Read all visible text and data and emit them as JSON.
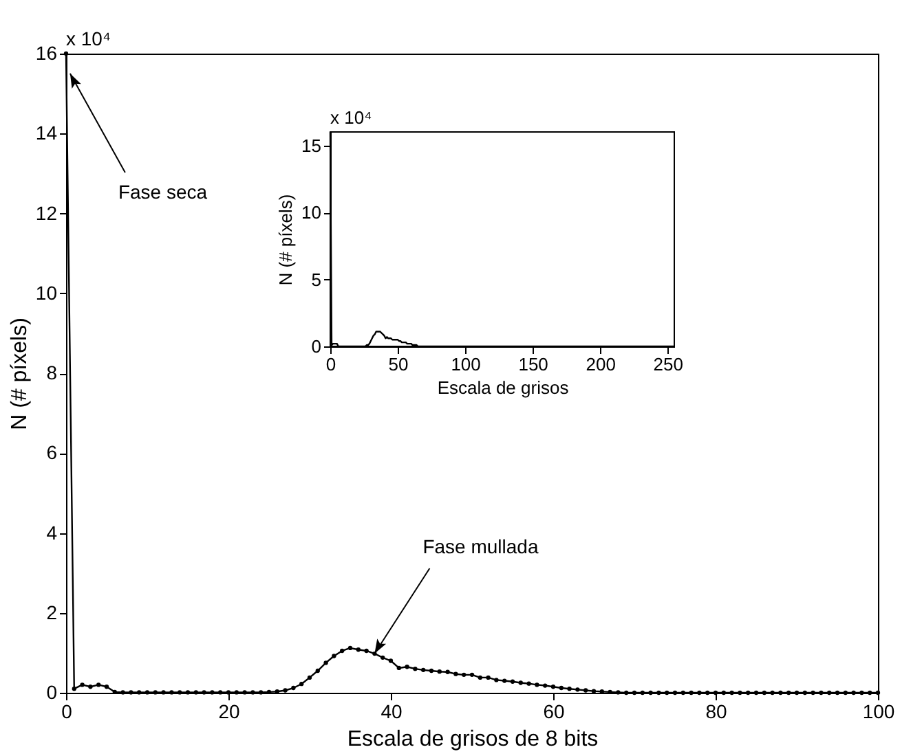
{
  "chart_data": [
    {
      "type": "line",
      "xlabel": "Escala de grisos de 8 bits",
      "ylabel": "N (# píxels)",
      "marker": "circle",
      "x": [
        0,
        1,
        2,
        3,
        4,
        5,
        6,
        7,
        8,
        9,
        10,
        11,
        12,
        13,
        14,
        15,
        16,
        17,
        18,
        19,
        20,
        21,
        22,
        23,
        24,
        25,
        26,
        27,
        28,
        29,
        30,
        31,
        32,
        33,
        34,
        35,
        36,
        37,
        38,
        39,
        40,
        41,
        42,
        43,
        44,
        45,
        46,
        47,
        48,
        49,
        50,
        51,
        52,
        53,
        54,
        55,
        56,
        57,
        58,
        59,
        60,
        61,
        62,
        63,
        64,
        65,
        66,
        67,
        68,
        69,
        70,
        71,
        72,
        73,
        74,
        75,
        76,
        77,
        78,
        79,
        80,
        81,
        82,
        83,
        84,
        85,
        86,
        87,
        88,
        89,
        90,
        91,
        92,
        93,
        94,
        95,
        96,
        97,
        98,
        99,
        100
      ],
      "series": [
        {
          "color": "#000000",
          "values": [
            16,
            0.1,
            0.2,
            0.15,
            0.2,
            0.15,
            0.02,
            0.01,
            0.01,
            0.01,
            0.01,
            0.01,
            0.01,
            0.01,
            0.01,
            0.01,
            0.01,
            0.01,
            0.01,
            0.01,
            0.01,
            0.01,
            0.01,
            0.01,
            0.01,
            0.02,
            0.03,
            0.06,
            0.12,
            0.22,
            0.38,
            0.55,
            0.75,
            0.92,
            1.05,
            1.12,
            1.08,
            1.05,
            0.98,
            0.88,
            0.8,
            0.62,
            0.65,
            0.6,
            0.57,
            0.55,
            0.53,
            0.52,
            0.47,
            0.45,
            0.45,
            0.38,
            0.38,
            0.32,
            0.3,
            0.28,
            0.25,
            0.23,
            0.2,
            0.18,
            0.15,
            0.12,
            0.1,
            0.08,
            0.06,
            0.04,
            0.03,
            0.02,
            0.01,
            0,
            0,
            0,
            0,
            0,
            0,
            0,
            0,
            0,
            0,
            0,
            0,
            0,
            0,
            0,
            0,
            0,
            0,
            0,
            0,
            0,
            0,
            0,
            0,
            0,
            0,
            0,
            0,
            0,
            0,
            0,
            0
          ]
        }
      ],
      "xlim": [
        0,
        100
      ],
      "xticks": [
        0,
        20,
        40,
        60,
        80,
        100
      ],
      "ylim": [
        0,
        16
      ],
      "yticks": [
        0,
        2,
        4,
        6,
        8,
        10,
        12,
        14,
        16
      ],
      "annotations": [
        "x 10⁴",
        {
          "text": "Fase seca",
          "x": 0.5,
          "y": 15.5
        },
        {
          "text": "Fase mullada",
          "x": 38,
          "y": 0.98
        }
      ]
    },
    {
      "type": "line",
      "xlabel": "Escala de grisos",
      "ylabel": "N (# píxels)",
      "x": [
        0,
        1,
        2,
        3,
        4,
        5,
        6,
        7,
        8,
        9,
        10,
        11,
        12,
        13,
        14,
        15,
        16,
        17,
        18,
        19,
        20,
        21,
        22,
        23,
        24,
        25,
        26,
        27,
        28,
        29,
        30,
        31,
        32,
        33,
        34,
        35,
        36,
        37,
        38,
        39,
        40,
        41,
        42,
        43,
        44,
        45,
        46,
        47,
        48,
        49,
        50,
        51,
        52,
        53,
        54,
        55,
        56,
        57,
        58,
        59,
        60,
        61,
        62,
        63,
        64,
        65,
        66,
        67,
        68,
        69,
        70,
        255
      ],
      "series": [
        {
          "color": "#000000",
          "values": [
            16,
            0.1,
            0.2,
            0.2,
            0.2,
            0.2,
            0,
            0,
            0,
            0,
            0,
            0,
            0,
            0,
            0,
            0,
            0,
            0,
            0,
            0,
            0,
            0,
            0,
            0,
            0,
            0,
            0,
            0.1,
            0.1,
            0.2,
            0.4,
            0.6,
            0.8,
            0.9,
            1.1,
            1.1,
            1.1,
            1.1,
            1,
            0.9,
            0.8,
            0.6,
            0.7,
            0.6,
            0.6,
            0.6,
            0.5,
            0.5,
            0.5,
            0.5,
            0.5,
            0.4,
            0.4,
            0.3,
            0.3,
            0.3,
            0.3,
            0.2,
            0.2,
            0.2,
            0.2,
            0.1,
            0.1,
            0.1,
            0.1,
            0,
            0,
            0,
            0,
            0,
            0,
            0
          ]
        }
      ],
      "xlim": [
        0,
        255
      ],
      "xticks": [
        0,
        50,
        100,
        150,
        200,
        250
      ],
      "ylim": [
        0,
        16
      ],
      "yticks": [
        0,
        5,
        10,
        15
      ],
      "annotations": [
        "x 10⁴"
      ]
    }
  ]
}
